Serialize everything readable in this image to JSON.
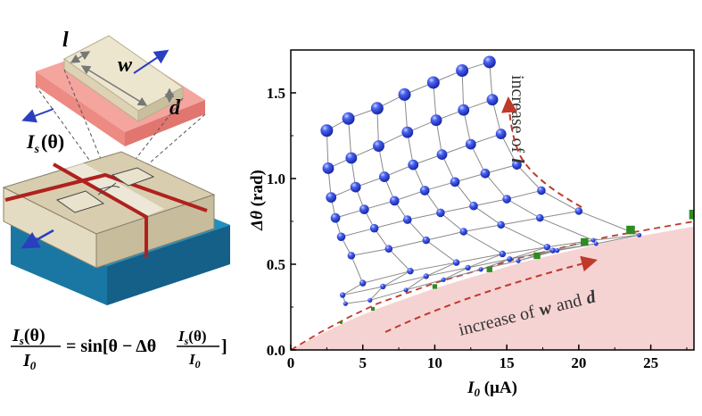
{
  "schematic": {
    "label_l": "l",
    "label_w": "w",
    "label_d": "d",
    "label_current": "I",
    "label_current_sub": "s",
    "label_current_arg": "(θ)"
  },
  "equation": {
    "frac1_num": "I",
    "frac1_num_sub": "s",
    "frac1_num_arg": "(θ)",
    "frac1_den": "I",
    "frac1_den_sub": "0",
    "equals_text": "= sin[θ − Δθ",
    "frac2_num": "I",
    "frac2_num_sub": "s",
    "frac2_num_arg": "(θ)",
    "frac2_den": "I",
    "frac2_den_sub": "0",
    "closing": "]"
  },
  "chart_data": {
    "type": "scatter",
    "xlabel_symbol": "I",
    "xlabel_sub": "0",
    "xlabel_unit": " (μA)",
    "ylabel_symbol": "Δθ",
    "ylabel_unit": " (rad)",
    "xlim": [
      0,
      28
    ],
    "ylim": [
      0,
      1.75
    ],
    "xticks": [
      0,
      5,
      10,
      15,
      20,
      25
    ],
    "yticks": [
      0.0,
      0.5,
      1.0,
      1.5
    ],
    "ytick_labels": [
      "0.0",
      "0.5",
      "1.0",
      "1.5"
    ],
    "annotation_l": "increase of",
    "annotation_l_var": "l",
    "annotation_wd_prefix": "increase of",
    "annotation_wd_w": "w",
    "annotation_wd_and": "and",
    "annotation_wd_d": "d",
    "grid": false,
    "colors": {
      "sphere": "#2a43d8",
      "square_marker": "#2e8b22",
      "shaded_region": "#f6d3d3",
      "dashed_curve": "#c0392b",
      "mesh_line": "#8a8a8a"
    },
    "sphere_grid": [
      [
        [
          13.8,
          1.68
        ],
        [
          11.9,
          1.63
        ],
        [
          9.9,
          1.56
        ],
        [
          7.9,
          1.49
        ],
        [
          6.0,
          1.41
        ],
        [
          4.0,
          1.35
        ],
        [
          2.5,
          1.28
        ]
      ],
      [
        [
          14.0,
          1.46
        ],
        [
          12.0,
          1.4
        ],
        [
          10.1,
          1.34
        ],
        [
          8.1,
          1.27
        ],
        [
          6.1,
          1.19
        ],
        [
          4.2,
          1.12
        ],
        [
          2.6,
          1.06
        ]
      ],
      [
        [
          14.6,
          1.26
        ],
        [
          12.5,
          1.2
        ],
        [
          10.5,
          1.14
        ],
        [
          8.5,
          1.08
        ],
        [
          6.5,
          1.01
        ],
        [
          4.5,
          0.95
        ],
        [
          2.8,
          0.89
        ]
      ],
      [
        [
          15.7,
          1.08
        ],
        [
          13.5,
          1.03
        ],
        [
          11.4,
          0.98
        ],
        [
          9.3,
          0.93
        ],
        [
          7.2,
          0.87
        ],
        [
          5.1,
          0.82
        ],
        [
          3.1,
          0.77
        ]
      ],
      [
        [
          17.4,
          0.93
        ],
        [
          15.0,
          0.88
        ],
        [
          12.7,
          0.84
        ],
        [
          10.4,
          0.8
        ],
        [
          8.1,
          0.76
        ],
        [
          5.8,
          0.71
        ],
        [
          3.5,
          0.66
        ]
      ],
      [
        [
          20.0,
          0.81
        ],
        [
          17.3,
          0.77
        ],
        [
          14.6,
          0.73
        ],
        [
          12.0,
          0.69
        ],
        [
          9.4,
          0.64
        ],
        [
          6.8,
          0.59
        ],
        [
          4.2,
          0.55
        ]
      ],
      [
        [
          24.2,
          0.67
        ],
        [
          21.0,
          0.64
        ],
        [
          17.8,
          0.6
        ],
        [
          14.7,
          0.56
        ],
        [
          11.5,
          0.51
        ],
        [
          8.3,
          0.46
        ],
        [
          5.0,
          0.39
        ]
      ],
      [
        [
          21.2,
          0.62
        ],
        [
          18.2,
          0.58
        ],
        [
          15.2,
          0.53
        ],
        [
          12.3,
          0.48
        ],
        [
          9.4,
          0.43
        ],
        [
          6.4,
          0.37
        ],
        [
          3.6,
          0.32
        ]
      ],
      [
        [
          18.5,
          0.58
        ],
        [
          15.8,
          0.52
        ],
        [
          13.2,
          0.47
        ],
        [
          10.6,
          0.41
        ],
        [
          8.0,
          0.35
        ],
        [
          5.5,
          0.29
        ],
        [
          3.8,
          0.27
        ]
      ]
    ],
    "square_markers": [
      [
        3.5,
        0.16
      ],
      [
        5.7,
        0.24
      ],
      [
        10.0,
        0.37
      ],
      [
        13.8,
        0.47
      ],
      [
        17.1,
        0.55
      ],
      [
        20.4,
        0.63
      ],
      [
        23.6,
        0.7
      ],
      [
        28.0,
        0.79
      ]
    ],
    "boundary_curve": [
      [
        0,
        0.0
      ],
      [
        2,
        0.1
      ],
      [
        4,
        0.19
      ],
      [
        6,
        0.27
      ],
      [
        8,
        0.33
      ],
      [
        10,
        0.39
      ],
      [
        12,
        0.44
      ],
      [
        14,
        0.49
      ],
      [
        16,
        0.54
      ],
      [
        18,
        0.58
      ],
      [
        20,
        0.62
      ],
      [
        22,
        0.66
      ],
      [
        24,
        0.69
      ],
      [
        26,
        0.72
      ],
      [
        28,
        0.75
      ]
    ],
    "shaded_top": [
      [
        0,
        0.0
      ],
      [
        2,
        0.09
      ],
      [
        4,
        0.17
      ],
      [
        6,
        0.24
      ],
      [
        8,
        0.3
      ],
      [
        10,
        0.36
      ],
      [
        12,
        0.41
      ],
      [
        14,
        0.46
      ],
      [
        16,
        0.51
      ],
      [
        18,
        0.55
      ],
      [
        20,
        0.59
      ],
      [
        22,
        0.63
      ],
      [
        24,
        0.66
      ],
      [
        26,
        0.69
      ],
      [
        28,
        0.72
      ]
    ]
  }
}
